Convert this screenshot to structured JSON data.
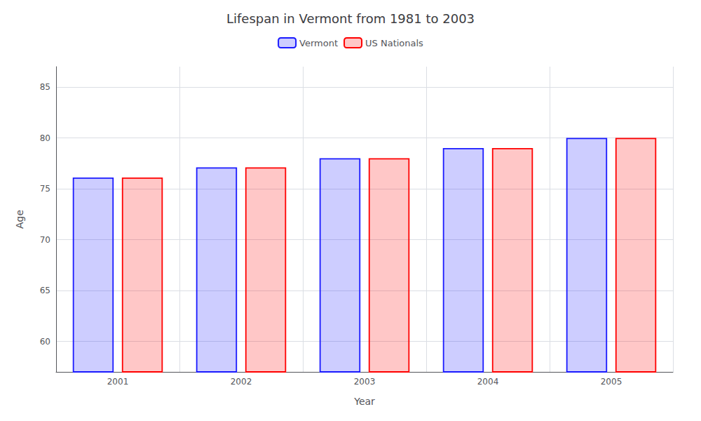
{
  "chart_data": {
    "type": "bar",
    "title": "Lifespan in Vermont from 1981 to 2003",
    "xlabel": "Year",
    "ylabel": "Age",
    "categories": [
      "2001",
      "2002",
      "2003",
      "2004",
      "2005"
    ],
    "series": [
      {
        "name": "Vermont",
        "color": "#1a1aff",
        "values": [
          76.1,
          77.1,
          78.0,
          79.0,
          80.0
        ]
      },
      {
        "name": "US Nationals",
        "color": "#ff0000",
        "values": [
          76.1,
          77.1,
          78.0,
          79.0,
          80.0
        ]
      }
    ],
    "ylim": [
      57,
      87
    ],
    "yticks": [
      60,
      65,
      70,
      75,
      80,
      85
    ],
    "grid": true,
    "legend": "top"
  }
}
